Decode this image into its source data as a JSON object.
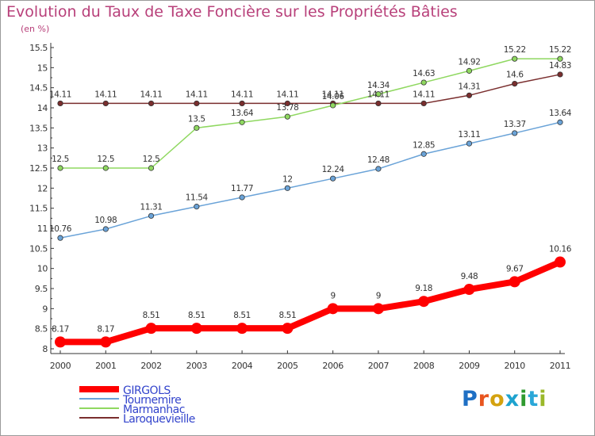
{
  "title": "Evolution du Taux de Taxe Foncière sur les Propriétés Bâties",
  "subtitle": "(en %)",
  "logo": {
    "text": "Proxiti",
    "colors": [
      "#1e6fc4",
      "#e8551f",
      "#d4a20f",
      "#1ea3cf",
      "#2f9a2f",
      "#2aa7d8",
      "#9ab82a"
    ]
  },
  "chart_data": {
    "type": "line",
    "x": [
      2000,
      2001,
      2002,
      2003,
      2004,
      2005,
      2006,
      2007,
      2008,
      2009,
      2010,
      2011
    ],
    "ylim": [
      8,
      15.5
    ],
    "yticks": [
      "8",
      "8.5",
      "9",
      "9.5",
      "10",
      "10.5",
      "11",
      "11.5",
      "12",
      "12.5",
      "13",
      "13.5",
      "14",
      "14.5",
      "15",
      "15.5"
    ],
    "grid": false,
    "legend_position": "bottom-left",
    "series": [
      {
        "name": "GIRGOLS",
        "color": "#ff0000",
        "line_width": 8,
        "marker": 7,
        "values": [
          8.17,
          8.17,
          8.51,
          8.51,
          8.51,
          8.51,
          9,
          9,
          9.18,
          9.48,
          9.67,
          10.16
        ],
        "labels": [
          "8.17",
          "8.17",
          "8.51",
          "8.51",
          "8.51",
          "8.51",
          "9",
          "9",
          "9.18",
          "9.48",
          "9.67",
          "10.16"
        ]
      },
      {
        "name": "Tournemire",
        "color": "#6aa3d8",
        "line_width": 1.5,
        "marker": 3.2,
        "values": [
          10.76,
          10.98,
          11.31,
          11.54,
          11.77,
          12,
          12.24,
          12.48,
          12.85,
          13.11,
          13.37,
          13.64
        ],
        "labels": [
          "10.76",
          "10.98",
          "11.31",
          "11.54",
          "11.77",
          "12",
          "12.24",
          "12.48",
          "12.85",
          "13.11",
          "13.37",
          "13.64"
        ]
      },
      {
        "name": "Marmanhac",
        "color": "#8fd860",
        "line_width": 1.5,
        "marker": 3.2,
        "values": [
          12.5,
          12.5,
          12.5,
          13.5,
          13.64,
          13.78,
          14.06,
          14.34,
          14.63,
          14.92,
          15.22,
          15.22
        ],
        "labels": [
          "12.5",
          "12.5",
          "12.5",
          "13.5",
          "13.64",
          "13.78",
          "14.06",
          "14.34",
          "14.63",
          "14.92",
          "15.22",
          "15.22"
        ]
      },
      {
        "name": "Laroquevieille",
        "color": "#7a2e2e",
        "line_width": 1.5,
        "marker": 3.2,
        "values": [
          14.11,
          14.11,
          14.11,
          14.11,
          14.11,
          14.11,
          14.11,
          14.11,
          14.11,
          14.31,
          14.6,
          14.83
        ],
        "labels": [
          "14.11",
          "14.11",
          "14.11",
          "14.11",
          "14.11",
          "14.11",
          "14.11",
          "14.11",
          "14.11",
          "14.31",
          "14.6",
          "14.83"
        ]
      }
    ]
  }
}
